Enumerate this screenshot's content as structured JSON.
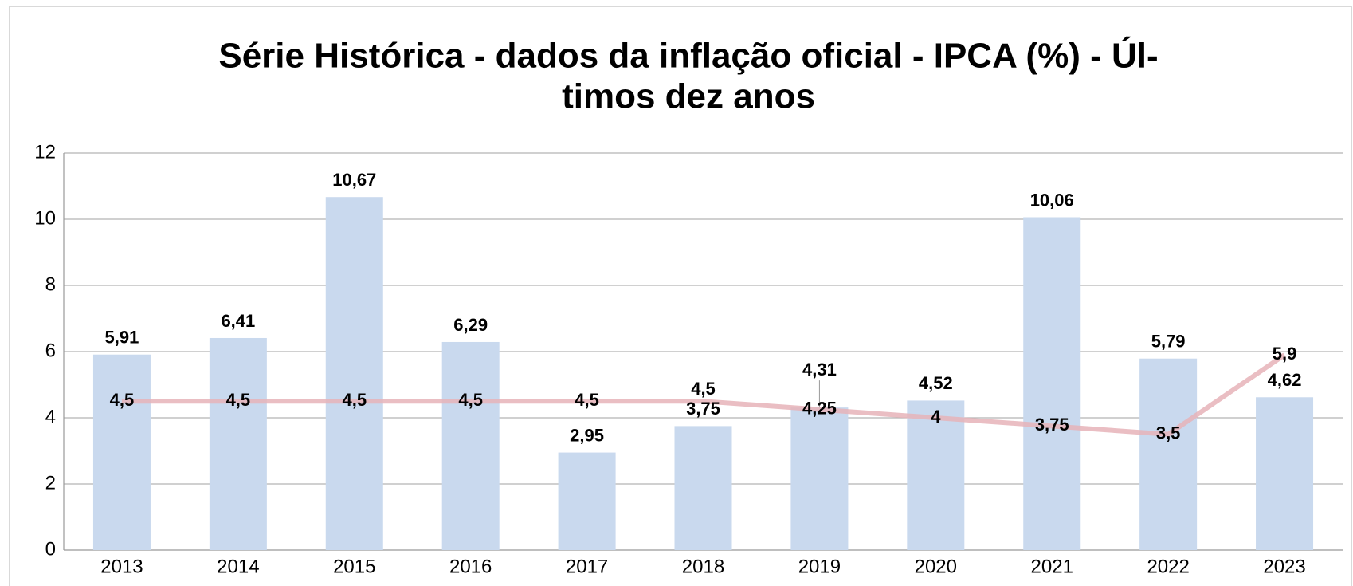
{
  "chart_data": {
    "type": "bar",
    "title": [
      "Série Histórica - dados da inflação oficial - IPCA (%) - Úl-",
      "timos dez anos"
    ],
    "categories": [
      "2013",
      "2014",
      "2015",
      "2016",
      "2017",
      "2018",
      "2019",
      "2020",
      "2021",
      "2022",
      "2023"
    ],
    "series": [
      {
        "type": "bar",
        "color": "#c9d9ee",
        "values": [
          5.91,
          6.41,
          10.67,
          6.29,
          2.95,
          3.75,
          4.31,
          4.52,
          10.06,
          5.79,
          4.62
        ],
        "value_labels": [
          "5,91",
          "6,41",
          "10,67",
          "6,29",
          "2,95",
          "3,75",
          "4,31",
          "4,52",
          "10,06",
          "5,79",
          "4,62"
        ]
      },
      {
        "type": "line",
        "color": "#e6b3b8",
        "values": [
          4.5,
          4.5,
          4.5,
          4.5,
          4.5,
          4.5,
          4.25,
          4,
          3.75,
          3.5,
          5.9
        ],
        "value_labels": [
          "4,5",
          "4,5",
          "4,5",
          "4,5",
          "4,5",
          "4,5",
          "4,25",
          "4",
          "3,75",
          "3,5",
          "5,9"
        ]
      }
    ],
    "ylim": [
      0,
      12
    ],
    "yticks": [
      0,
      2,
      4,
      6,
      8,
      10,
      12
    ],
    "grid": true
  }
}
